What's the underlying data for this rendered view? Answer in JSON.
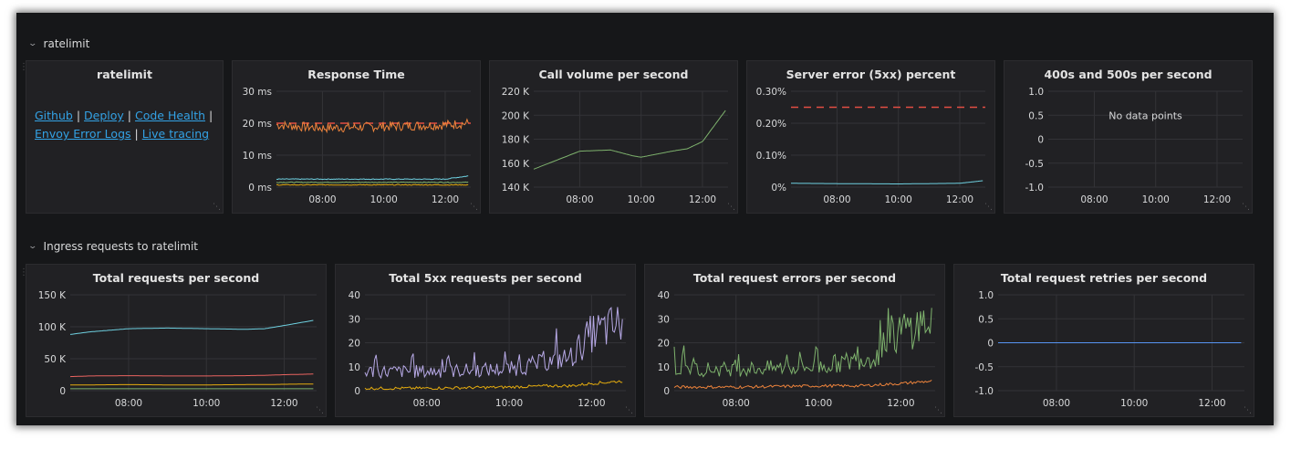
{
  "rows": [
    {
      "title": "ratelimit"
    },
    {
      "title": "Ingress requests to ratelimit"
    }
  ],
  "text_panel": {
    "title": "ratelimit",
    "links": [
      "Github",
      "Deploy",
      "Code Health",
      "Envoy Error Logs",
      "Live tracing"
    ],
    "separator": "|"
  },
  "panels": [
    {
      "id": "response-time",
      "title": "Response Time",
      "y_ticks": [
        "30 ms",
        "20 ms",
        "10 ms",
        "0 ms"
      ],
      "x_ticks": [
        "08:00",
        "10:00",
        "12:00"
      ],
      "no_data": ""
    },
    {
      "id": "call-volume",
      "title": "Call volume per second",
      "y_ticks": [
        "220 K",
        "200 K",
        "180 K",
        "160 K",
        "140 K"
      ],
      "x_ticks": [
        "08:00",
        "10:00",
        "12:00"
      ],
      "no_data": ""
    },
    {
      "id": "server-error",
      "title": "Server error (5xx) percent",
      "y_ticks": [
        "0.30%",
        "0.20%",
        "0.10%",
        "0%"
      ],
      "x_ticks": [
        "08:00",
        "10:00",
        "12:00"
      ],
      "no_data": ""
    },
    {
      "id": "400s-500s",
      "title": "400s and 500s per second",
      "y_ticks": [
        "1.0",
        "0.5",
        "0",
        "-0.5",
        "-1.0"
      ],
      "x_ticks": [
        "08:00",
        "10:00",
        "12:00"
      ],
      "no_data": "No data points"
    },
    {
      "id": "total-requests",
      "title": "Total requests per second",
      "y_ticks": [
        "150 K",
        "100 K",
        "50 K",
        "0"
      ],
      "x_ticks": [
        "08:00",
        "10:00",
        "12:00"
      ],
      "no_data": ""
    },
    {
      "id": "total-5xx",
      "title": "Total 5xx requests per second",
      "y_ticks": [
        "40",
        "30",
        "20",
        "10",
        "0"
      ],
      "x_ticks": [
        "08:00",
        "10:00",
        "12:00"
      ],
      "no_data": ""
    },
    {
      "id": "total-errors",
      "title": "Total request errors per second",
      "y_ticks": [
        "40",
        "30",
        "20",
        "10",
        "0"
      ],
      "x_ticks": [
        "08:00",
        "10:00",
        "12:00"
      ],
      "no_data": ""
    },
    {
      "id": "total-retries",
      "title": "Total request retries per second",
      "y_ticks": [
        "1.0",
        "0.5",
        "0",
        "-0.5",
        "-1.0"
      ],
      "x_ticks": [
        "08:00",
        "10:00",
        "12:00"
      ],
      "no_data": ""
    }
  ],
  "chart_data": [
    {
      "type": "line",
      "title": "Response Time",
      "x": [
        "06:30",
        "08:00",
        "10:00",
        "12:00",
        "12:45"
      ],
      "ylim": [
        0,
        30
      ],
      "unit": "ms",
      "series": [
        {
          "values": [
            19.5,
            18.5,
            19,
            19.5,
            20
          ]
        },
        {
          "values": [
            2.5,
            2.5,
            2.5,
            2.5,
            3.5
          ]
        },
        {
          "values": [
            1.5,
            1.5,
            1.5,
            1.5,
            1.5
          ]
        },
        {
          "values": [
            0.7,
            0.7,
            0.7,
            0.7,
            0.7
          ]
        }
      ],
      "threshold": 20,
      "colors": [
        "#ef843c",
        "#6ed0e0",
        "#7eb26d",
        "#e5ac0e"
      ]
    },
    {
      "type": "line",
      "title": "Call volume per second",
      "x": [
        "06:30",
        "07:00",
        "08:00",
        "09:00",
        "09:45",
        "10:00",
        "11:00",
        "11:30",
        "12:00",
        "12:45"
      ],
      "ylim": [
        140000,
        220000
      ],
      "series": [
        {
          "values": [
            155000,
            160000,
            170000,
            171000,
            166000,
            165000,
            170000,
            172000,
            178000,
            204000
          ]
        }
      ],
      "colors": [
        "#7eb26d"
      ]
    },
    {
      "type": "line",
      "title": "Server error (5xx) percent",
      "x": [
        "06:30",
        "08:00",
        "10:00",
        "12:00",
        "12:45"
      ],
      "ylim": [
        0,
        0.3
      ],
      "unit": "%",
      "series": [
        {
          "values": [
            0.012,
            0.011,
            0.01,
            0.012,
            0.02
          ]
        }
      ],
      "threshold": 0.25,
      "colors": [
        "#6ed0e0"
      ]
    },
    {
      "type": "line",
      "title": "400s and 500s per second",
      "x": [
        "08:00",
        "10:00",
        "12:00"
      ],
      "ylim": [
        -1,
        1
      ],
      "series": []
    },
    {
      "type": "line",
      "title": "Total requests per second",
      "x": [
        "06:30",
        "07:00",
        "08:00",
        "09:00",
        "10:00",
        "11:00",
        "11:30",
        "12:00",
        "12:45"
      ],
      "ylim": [
        0,
        150000
      ],
      "series": [
        {
          "values": [
            88000,
            92000,
            97000,
            98000,
            97000,
            96000,
            97000,
            102000,
            110000
          ]
        },
        {
          "values": [
            22000,
            23000,
            23500,
            23000,
            23000,
            23500,
            24000,
            25000,
            26000
          ]
        },
        {
          "values": [
            9000,
            9000,
            9500,
            9000,
            9000,
            9500,
            9500,
            10000,
            10500
          ]
        },
        {
          "values": [
            3000,
            3000,
            3000,
            3000,
            3000,
            3000,
            3000,
            3000,
            3000
          ]
        }
      ],
      "colors": [
        "#6ed0e0",
        "#ea6460",
        "#e5ac0e",
        "#7eb26d"
      ]
    },
    {
      "type": "line",
      "title": "Total 5xx requests per second",
      "x": [
        "06:30",
        "08:00",
        "10:00",
        "11:00",
        "11:30",
        "12:00",
        "12:45"
      ],
      "ylim": [
        0,
        40
      ],
      "series": [
        {
          "values": [
            8,
            8,
            9,
            12,
            14,
            24,
            28
          ]
        },
        {
          "values": [
            1,
            1,
            1.5,
            2,
            2,
            3,
            4
          ]
        }
      ],
      "colors": [
        "#b7a9e6",
        "#e5ac0e"
      ]
    },
    {
      "type": "line",
      "title": "Total request errors per second",
      "x": [
        "06:30",
        "08:00",
        "10:00",
        "11:00",
        "11:30",
        "12:00",
        "12:45"
      ],
      "ylim": [
        0,
        40
      ],
      "series": [
        {
          "values": [
            9,
            9,
            10,
            13,
            15,
            25,
            29
          ]
        },
        {
          "values": [
            1.5,
            1.5,
            2,
            2,
            2.5,
            3,
            4
          ]
        }
      ],
      "colors": [
        "#7eb26d",
        "#ef843c"
      ]
    },
    {
      "type": "line",
      "title": "Total request retries per second",
      "x": [
        "06:30",
        "08:00",
        "10:00",
        "12:00",
        "12:45"
      ],
      "ylim": [
        -1,
        1
      ],
      "series": [
        {
          "values": [
            0,
            0,
            0,
            0,
            0
          ]
        }
      ],
      "colors": [
        "#5794f2"
      ]
    }
  ]
}
